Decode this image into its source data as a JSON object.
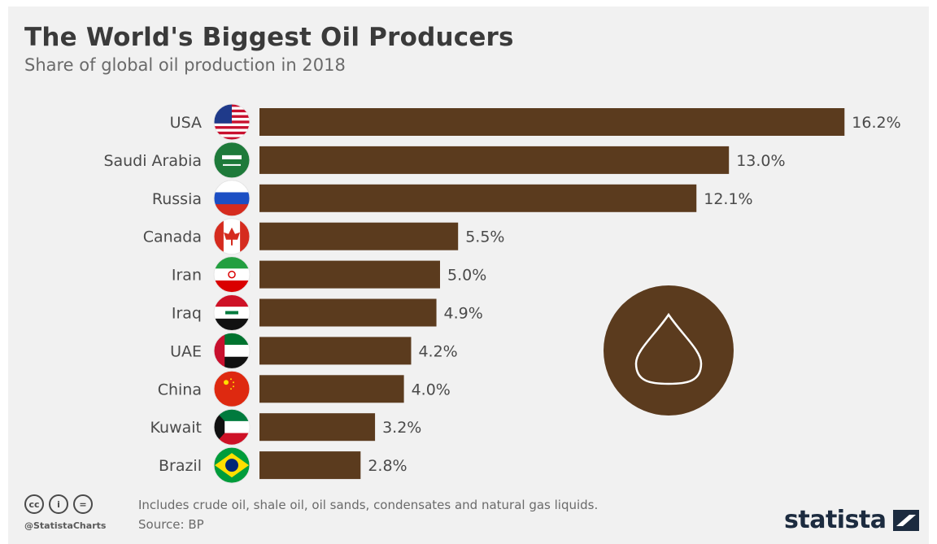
{
  "header": {
    "title": "The World's Biggest Oil Producers",
    "subtitle": "Share of global oil production in 2018"
  },
  "chart_data": {
    "type": "bar",
    "orientation": "horizontal",
    "categories": [
      "USA",
      "Saudi Arabia",
      "Russia",
      "Canada",
      "Iran",
      "Iraq",
      "UAE",
      "China",
      "Kuwait",
      "Brazil"
    ],
    "values": [
      16.2,
      13.0,
      12.1,
      5.5,
      5.0,
      4.9,
      4.2,
      4.0,
      3.2,
      2.8
    ],
    "value_labels": [
      "16.2%",
      "13.0%",
      "12.1%",
      "5.5%",
      "5.0%",
      "4.9%",
      "4.2%",
      "4.0%",
      "3.2%",
      "2.8%"
    ],
    "unit": "%",
    "bar_color": "#5b3b1e",
    "flag_icons": [
      "usa-flag-icon",
      "saudi-arabia-flag-icon",
      "russia-flag-icon",
      "canada-flag-icon",
      "iran-flag-icon",
      "iraq-flag-icon",
      "uae-flag-icon",
      "china-flag-icon",
      "kuwait-flag-icon",
      "brazil-flag-icon"
    ],
    "decoration_icon": "oil-drop-icon",
    "grid": false,
    "legend": "none"
  },
  "footer": {
    "note": "Includes crude oil, shale oil, oil sands, condensates and natural gas liquids.",
    "source": "Source: BP",
    "handle": "@StatistaCharts",
    "license_icons": [
      "cc",
      "i",
      "="
    ],
    "logo": "statista"
  }
}
